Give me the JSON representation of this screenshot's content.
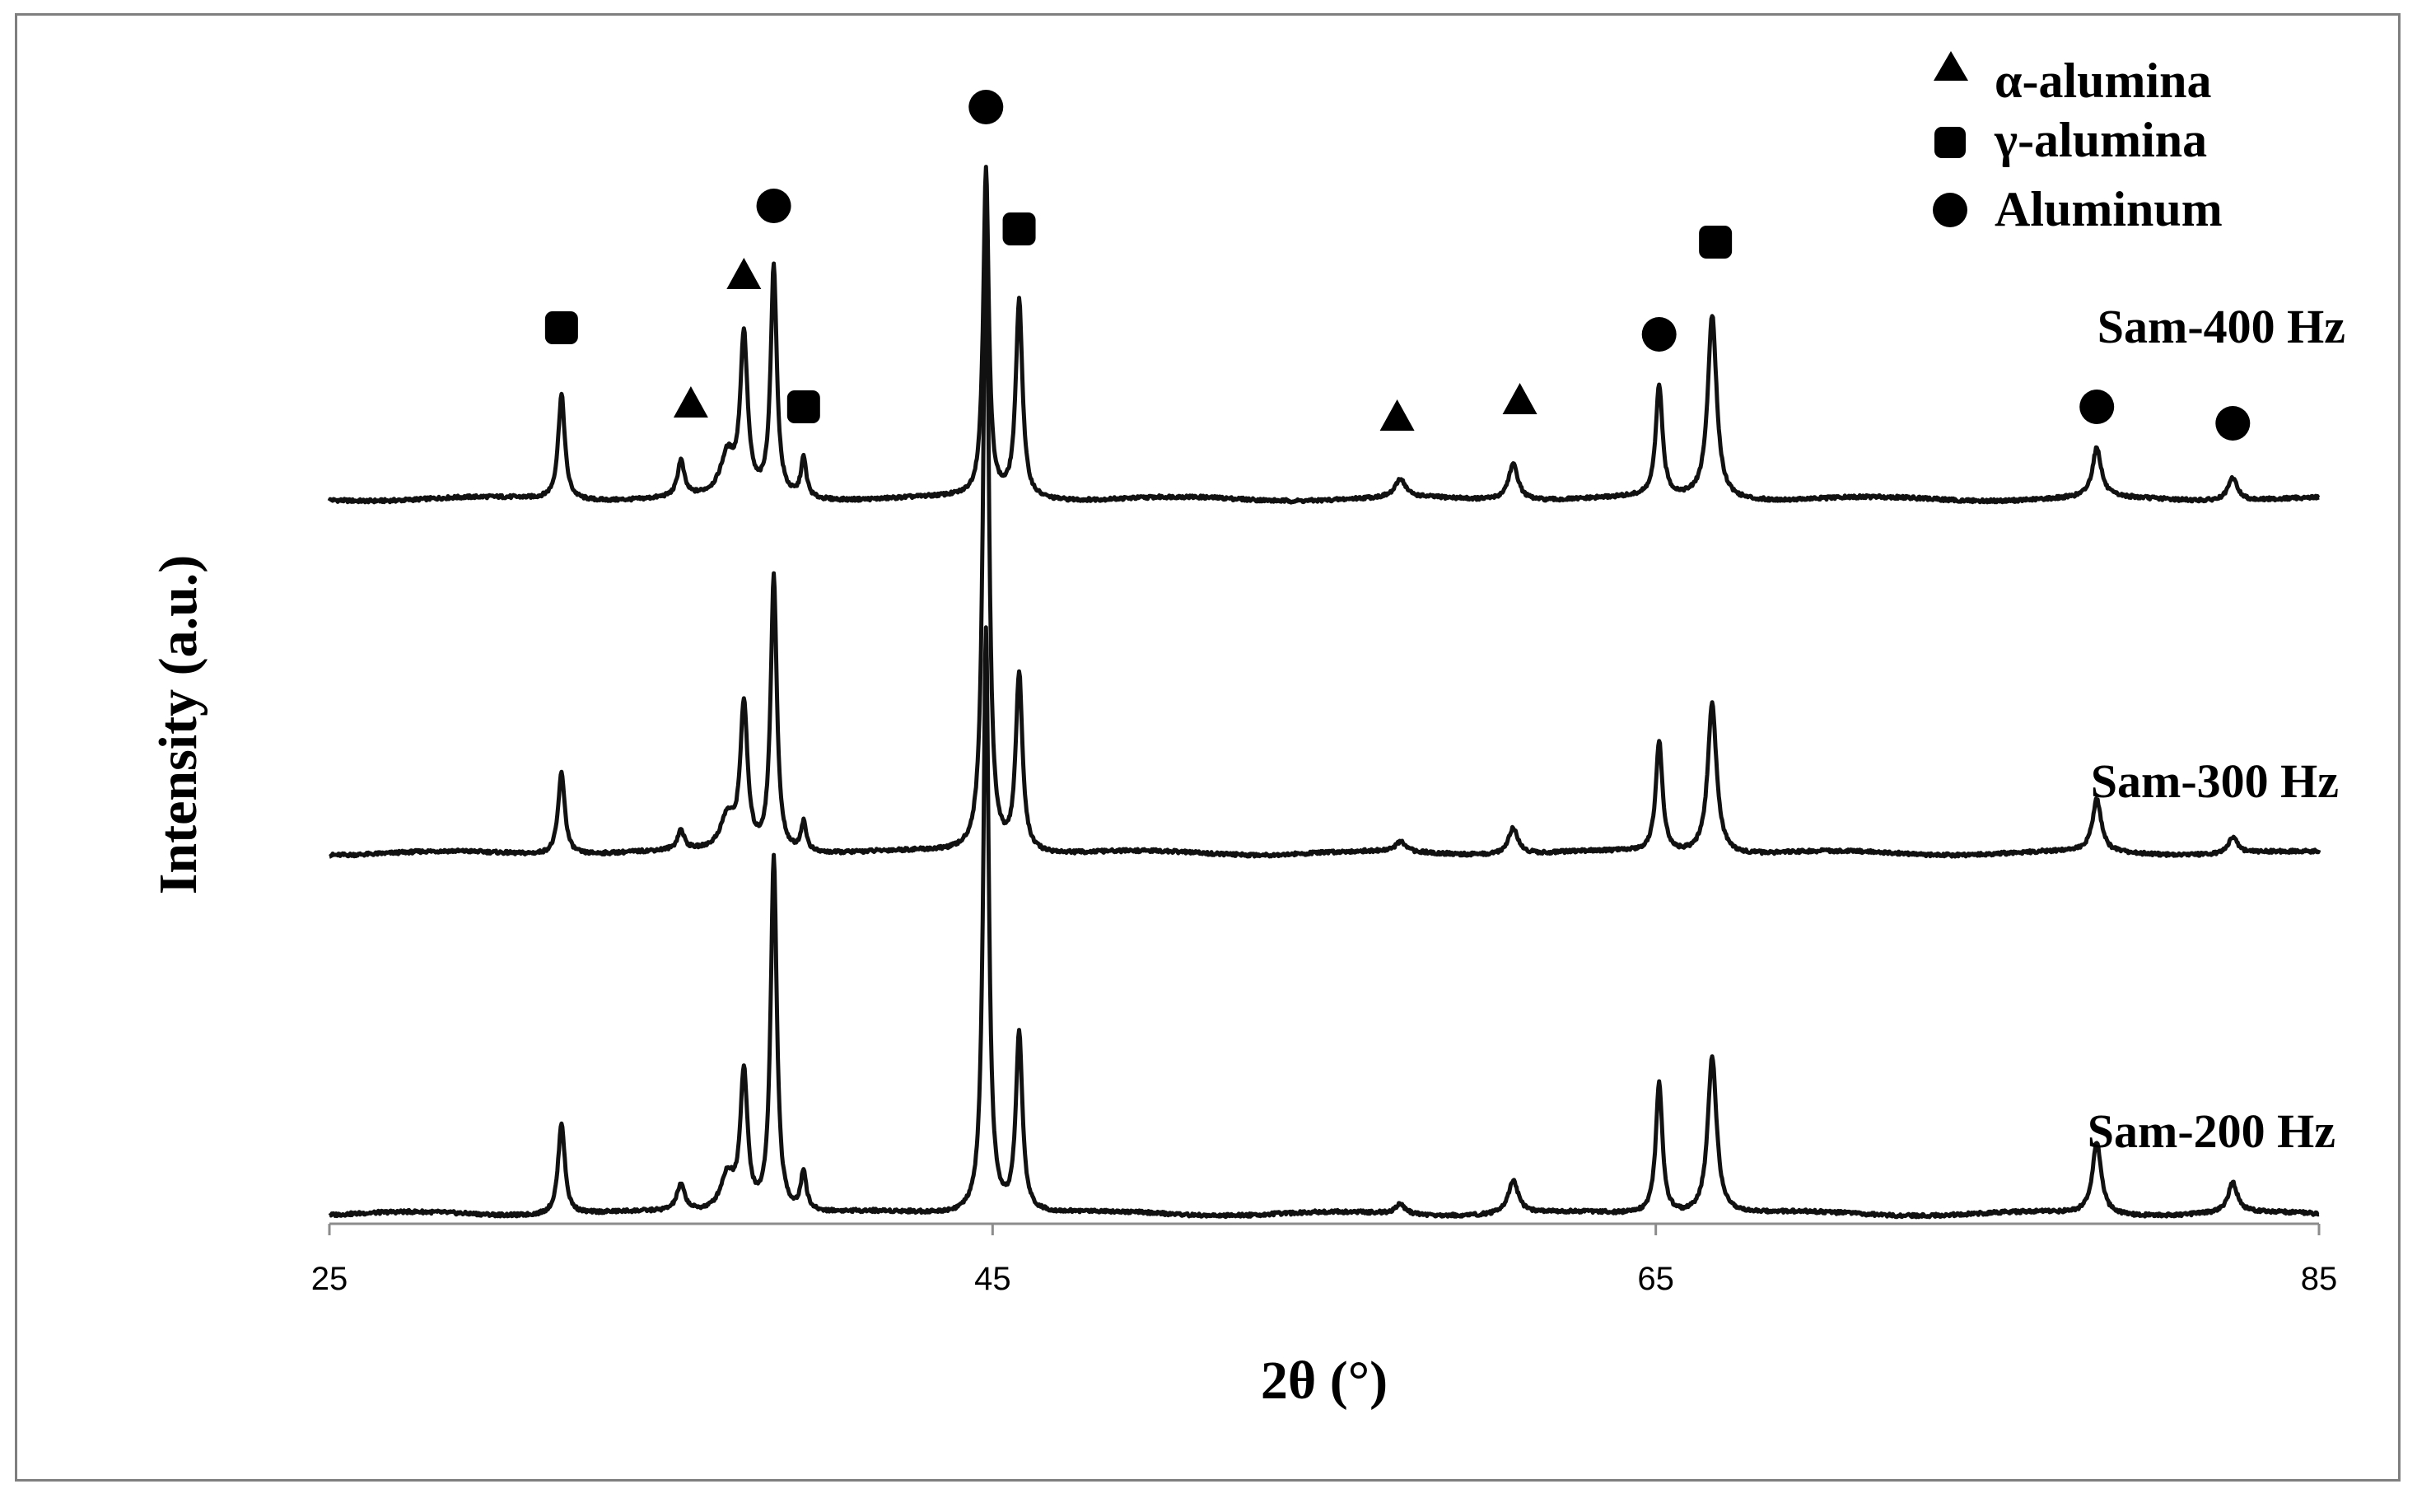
{
  "chart_data": {
    "type": "line",
    "title": "",
    "xlabel": "2θ (°)",
    "ylabel": "Intensity (a.u.)",
    "xlim": [
      25,
      85
    ],
    "xticks": [
      25,
      45,
      65,
      85
    ],
    "y_tick_labels_shown": false,
    "grid": false,
    "legend_position": "top-right",
    "legend": [
      {
        "marker": "triangle",
        "label": "α-alumina"
      },
      {
        "marker": "square",
        "label": "γ-alumina"
      },
      {
        "marker": "circle",
        "label": "Aluminum"
      }
    ],
    "series": [
      {
        "name": "Sam-400 Hz",
        "baseline": 0,
        "peaks": [
          {
            "x": 32.0,
            "h": 1.6,
            "w": 0.12
          },
          {
            "x": 35.6,
            "h": 0.55,
            "w": 0.12
          },
          {
            "x": 37.5,
            "h": 2.4,
            "w": 0.13
          },
          {
            "x": 37.0,
            "h": 0.6,
            "w": 0.25
          },
          {
            "x": 38.4,
            "h": 3.5,
            "w": 0.11
          },
          {
            "x": 39.3,
            "h": 0.6,
            "w": 0.1
          },
          {
            "x": 44.8,
            "h": 5.0,
            "w": 0.1
          },
          {
            "x": 45.8,
            "h": 3.0,
            "w": 0.12
          },
          {
            "x": 57.3,
            "h": 0.28,
            "w": 0.18
          },
          {
            "x": 60.7,
            "h": 0.55,
            "w": 0.18
          },
          {
            "x": 65.1,
            "h": 1.7,
            "w": 0.12
          },
          {
            "x": 66.7,
            "h": 2.8,
            "w": 0.16
          },
          {
            "x": 78.3,
            "h": 0.75,
            "w": 0.16
          },
          {
            "x": 82.4,
            "h": 0.35,
            "w": 0.17
          }
        ],
        "markers": [
          {
            "x": 32.0,
            "y": 2.6,
            "type": "square"
          },
          {
            "x": 35.9,
            "y": 1.45,
            "type": "triangle"
          },
          {
            "x": 37.5,
            "y": 3.4,
            "type": "triangle"
          },
          {
            "x": 38.4,
            "y": 4.45,
            "type": "circle"
          },
          {
            "x": 39.3,
            "y": 1.4,
            "type": "square"
          },
          {
            "x": 44.8,
            "y": 5.95,
            "type": "circle"
          },
          {
            "x": 45.8,
            "y": 4.1,
            "type": "square"
          },
          {
            "x": 57.2,
            "y": 1.25,
            "type": "triangle"
          },
          {
            "x": 60.9,
            "y": 1.5,
            "type": "triangle"
          },
          {
            "x": 65.1,
            "y": 2.5,
            "type": "circle"
          },
          {
            "x": 66.8,
            "y": 3.9,
            "type": "square"
          },
          {
            "x": 78.3,
            "y": 1.4,
            "type": "circle"
          },
          {
            "x": 82.4,
            "y": 1.15,
            "type": "circle"
          }
        ]
      },
      {
        "name": "Sam-300 Hz",
        "baseline": 0,
        "peaks": [
          {
            "x": 32.0,
            "h": 1.25,
            "w": 0.12
          },
          {
            "x": 35.6,
            "h": 0.3,
            "w": 0.12
          },
          {
            "x": 37.5,
            "h": 2.2,
            "w": 0.13
          },
          {
            "x": 37.0,
            "h": 0.5,
            "w": 0.25
          },
          {
            "x": 38.4,
            "h": 4.2,
            "w": 0.11
          },
          {
            "x": 39.3,
            "h": 0.45,
            "w": 0.1
          },
          {
            "x": 44.8,
            "h": 10.0,
            "w": 0.1
          },
          {
            "x": 45.8,
            "h": 2.7,
            "w": 0.12
          },
          {
            "x": 57.3,
            "h": 0.15,
            "w": 0.18
          },
          {
            "x": 60.7,
            "h": 0.4,
            "w": 0.18
          },
          {
            "x": 65.1,
            "h": 1.7,
            "w": 0.12
          },
          {
            "x": 66.7,
            "h": 2.3,
            "w": 0.16
          },
          {
            "x": 78.3,
            "h": 0.8,
            "w": 0.16
          },
          {
            "x": 82.4,
            "h": 0.25,
            "w": 0.17
          }
        ],
        "markers": []
      },
      {
        "name": "Sam-200 Hz",
        "baseline": 0,
        "peaks": [
          {
            "x": 32.0,
            "h": 1.4,
            "w": 0.12
          },
          {
            "x": 35.6,
            "h": 0.4,
            "w": 0.15
          },
          {
            "x": 37.5,
            "h": 2.1,
            "w": 0.13
          },
          {
            "x": 37.0,
            "h": 0.55,
            "w": 0.25
          },
          {
            "x": 38.4,
            "h": 5.4,
            "w": 0.11
          },
          {
            "x": 39.3,
            "h": 0.6,
            "w": 0.1
          },
          {
            "x": 44.8,
            "h": 8.9,
            "w": 0.1
          },
          {
            "x": 45.8,
            "h": 2.7,
            "w": 0.12
          },
          {
            "x": 57.3,
            "h": 0.15,
            "w": 0.18
          },
          {
            "x": 60.7,
            "h": 0.5,
            "w": 0.18
          },
          {
            "x": 65.1,
            "h": 2.0,
            "w": 0.12
          },
          {
            "x": 66.7,
            "h": 2.4,
            "w": 0.16
          },
          {
            "x": 78.3,
            "h": 1.1,
            "w": 0.16
          },
          {
            "x": 82.4,
            "h": 0.45,
            "w": 0.17
          }
        ],
        "markers": []
      }
    ]
  }
}
